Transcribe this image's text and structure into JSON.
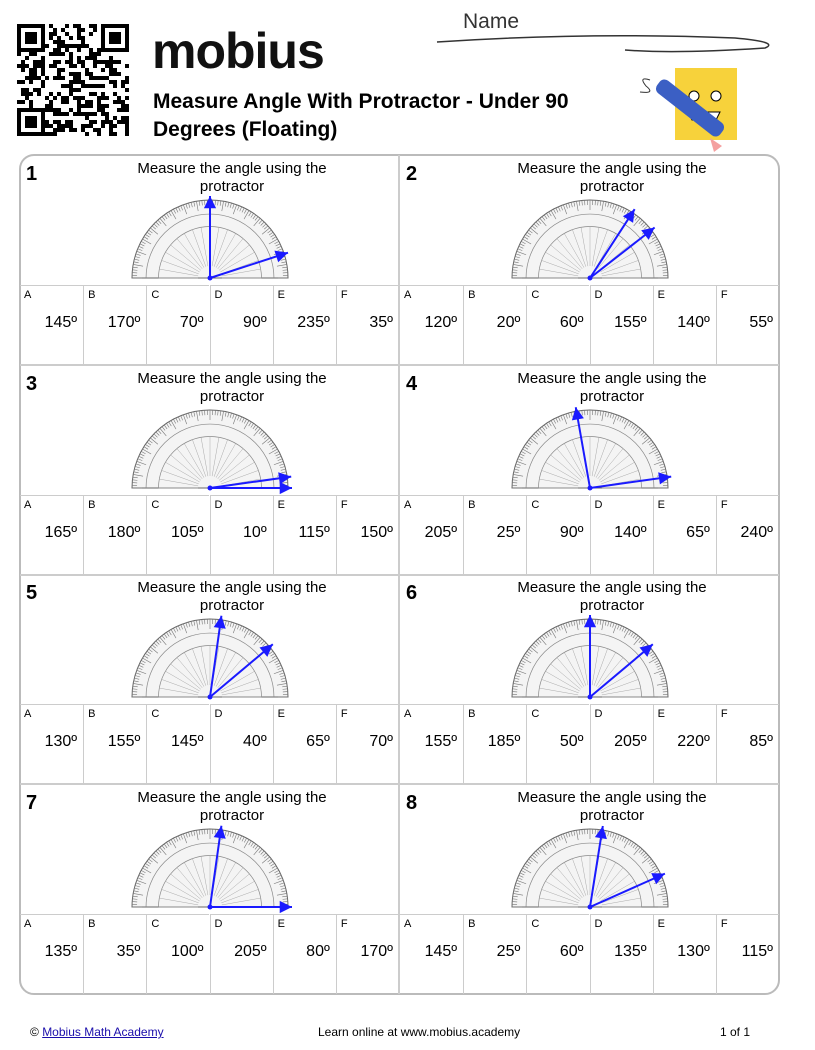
{
  "header": {
    "logo": "mobius",
    "name_label": "Name",
    "title": "Measure Angle With Protractor - Under 90 Degrees (Floating)"
  },
  "problems": [
    {
      "number": "1",
      "prompt": "Measure the angle using the protractor",
      "options": [
        {
          "letter": "A",
          "value": "145º"
        },
        {
          "letter": "B",
          "value": "170º"
        },
        {
          "letter": "C",
          "value": "70º"
        },
        {
          "letter": "D",
          "value": "90º"
        },
        {
          "letter": "E",
          "value": "235º"
        },
        {
          "letter": "F",
          "value": "35º"
        }
      ]
    },
    {
      "number": "2",
      "prompt": "Measure the angle using the protractor",
      "options": [
        {
          "letter": "A",
          "value": "120º"
        },
        {
          "letter": "B",
          "value": "20º"
        },
        {
          "letter": "C",
          "value": "60º"
        },
        {
          "letter": "D",
          "value": "155º"
        },
        {
          "letter": "E",
          "value": "140º"
        },
        {
          "letter": "F",
          "value": "55º"
        }
      ]
    },
    {
      "number": "3",
      "prompt": "Measure the angle using the protractor",
      "options": [
        {
          "letter": "A",
          "value": "165º"
        },
        {
          "letter": "B",
          "value": "180º"
        },
        {
          "letter": "C",
          "value": "105º"
        },
        {
          "letter": "D",
          "value": "10º"
        },
        {
          "letter": "E",
          "value": "115º"
        },
        {
          "letter": "F",
          "value": "150º"
        }
      ]
    },
    {
      "number": "4",
      "prompt": "Measure the angle using the protractor",
      "options": [
        {
          "letter": "A",
          "value": "205º"
        },
        {
          "letter": "B",
          "value": "25º"
        },
        {
          "letter": "C",
          "value": "90º"
        },
        {
          "letter": "D",
          "value": "140º"
        },
        {
          "letter": "E",
          "value": "65º"
        },
        {
          "letter": "F",
          "value": "240º"
        }
      ]
    },
    {
      "number": "5",
      "prompt": "Measure the angle using the protractor",
      "options": [
        {
          "letter": "A",
          "value": "130º"
        },
        {
          "letter": "B",
          "value": "155º"
        },
        {
          "letter": "C",
          "value": "145º"
        },
        {
          "letter": "D",
          "value": "40º"
        },
        {
          "letter": "E",
          "value": "65º"
        },
        {
          "letter": "F",
          "value": "70º"
        }
      ]
    },
    {
      "number": "6",
      "prompt": "Measure the angle using the protractor",
      "options": [
        {
          "letter": "A",
          "value": "155º"
        },
        {
          "letter": "B",
          "value": "185º"
        },
        {
          "letter": "C",
          "value": "50º"
        },
        {
          "letter": "D",
          "value": "205º"
        },
        {
          "letter": "E",
          "value": "220º"
        },
        {
          "letter": "F",
          "value": "85º"
        }
      ]
    },
    {
      "number": "7",
      "prompt": "Measure the angle using the protractor",
      "options": [
        {
          "letter": "A",
          "value": "135º"
        },
        {
          "letter": "B",
          "value": "35º"
        },
        {
          "letter": "C",
          "value": "100º"
        },
        {
          "letter": "D",
          "value": "205º"
        },
        {
          "letter": "E",
          "value": "80º"
        },
        {
          "letter": "F",
          "value": "170º"
        }
      ]
    },
    {
      "number": "8",
      "prompt": "Measure the angle using the protractor",
      "options": [
        {
          "letter": "A",
          "value": "145º"
        },
        {
          "letter": "B",
          "value": "25º"
        },
        {
          "letter": "C",
          "value": "60º"
        },
        {
          "letter": "D",
          "value": "135º"
        },
        {
          "letter": "E",
          "value": "130º"
        },
        {
          "letter": "F",
          "value": "115º"
        }
      ]
    }
  ],
  "footer": {
    "copyright": "©",
    "link": "Mobius Math Academy",
    "learn": "Learn online at www.mobius.academy",
    "page": "1 of 1"
  }
}
